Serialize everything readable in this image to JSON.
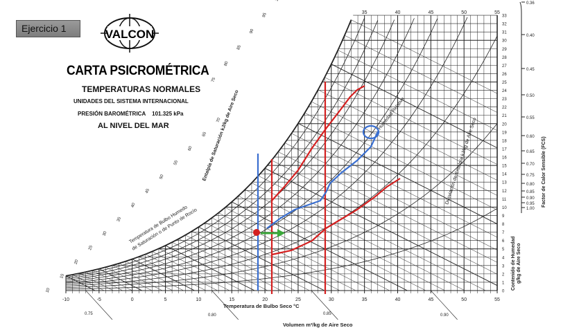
{
  "exercise_button": {
    "label": "Ejercicio 1"
  },
  "logo": {
    "text": "VALCON"
  },
  "header": {
    "title": "CARTA PSICROMÉTRICA",
    "subtitle": "TEMPERATURAS NORMALES",
    "units": "UNIDADES DEL SISTEMA INTERNACIONAL",
    "pressure_label": "PRESIÓN BAROMÉTRICA",
    "pressure_value": "101.325 kPa",
    "level": "AL NIVEL DEL MAR"
  },
  "axes": {
    "dry_bulb_label": "Temperatura de Bulbo Seco",
    "dry_bulb_unit": "°C",
    "dry_bulb_ticks": [
      "-10",
      "-5",
      "0",
      "5",
      "10",
      "15",
      "20",
      "25",
      "30",
      "35",
      "40",
      "45",
      "50",
      "55"
    ],
    "top_ticks": [
      "35",
      "40",
      "45",
      "50",
      "55"
    ],
    "humidity_label_1": "Contenido de Humedad",
    "humidity_label_2": "g/kg de Aire Seco",
    "humidity_ticks": [
      "0",
      "1",
      "2",
      "3",
      "4",
      "5",
      "6",
      "7",
      "8",
      "9",
      "10",
      "11",
      "12",
      "13",
      "14",
      "15",
      "16",
      "17",
      "18",
      "19",
      "20",
      "21",
      "22",
      "23",
      "24",
      "25",
      "26",
      "27",
      "28",
      "29",
      "30",
      "31",
      "32",
      "33"
    ],
    "volume_label": "Volumen",
    "volume_unit": "m³/kg de Aire Seco",
    "volume_ticks": [
      "0.75",
      "0.80",
      "0.85",
      "0.90"
    ],
    "enthalpy_label": "Entalpía de Saturación   kJ/kg de Aire Seco",
    "enthalpy_ticks": [
      "10",
      "15",
      "20",
      "25",
      "30",
      "35",
      "40",
      "45",
      "50",
      "55",
      "60",
      "65",
      "70",
      "75",
      "80",
      "85",
      "90",
      "95",
      "100",
      "105",
      "110"
    ],
    "wet_bulb_label_1": "Temperatura de Bulbo Humedo",
    "wet_bulb_label_2": "de Saturación o de Punto de Rocío",
    "relative_humidity_label": "Humedad Relativa",
    "enthalpy_deviation_label": "Desviación de Entalpía   kJ/kg de Aire Seco",
    "shf_label": "Factor de Calor Sensible  (FCS)",
    "shf_ticks": [
      "0.36",
      "0.40",
      "0.45",
      "0.50",
      "0.55",
      "0.60",
      "0.65",
      "0.70",
      "0.75",
      "0.80",
      "0.85",
      "0.90",
      "0.95",
      "1.00"
    ]
  },
  "colors": {
    "red": "#d42020",
    "blue": "#3a6fd0",
    "green": "#3aa83a",
    "grid": "#222222"
  }
}
